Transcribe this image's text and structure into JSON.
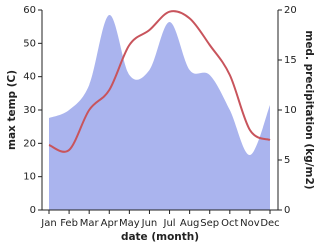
{
  "chart_data": {
    "type": "line_area",
    "x_label": "date (month)",
    "y_label": "max temp (C)",
    "y2_label": "med. precipitation (kg/m2)",
    "categories": [
      "Jan",
      "Feb",
      "Mar",
      "Apr",
      "May",
      "Jun",
      "Jul",
      "Aug",
      "Sep",
      "Oct",
      "Nov",
      "Dec"
    ],
    "series": [
      {
        "color": "#c8545c",
        "values": [
          19.5,
          18,
          30,
          36,
          49.5,
          54,
          59.5,
          57.5,
          49.5,
          40.5,
          24,
          21
        ]
      },
      {
        "color": "#aab4ee",
        "axis": "y2",
        "values": [
          9.2,
          10,
          12.5,
          19.5,
          13.5,
          14,
          18.8,
          14,
          13.5,
          10,
          5.5,
          10.5
        ]
      }
    ],
    "ylim": [
      0,
      60
    ],
    "yticks": [
      0,
      10,
      20,
      30,
      40,
      50,
      60
    ],
    "y2lim": [
      0,
      20
    ],
    "y2ticks": [
      0,
      5,
      10,
      15,
      20
    ]
  }
}
